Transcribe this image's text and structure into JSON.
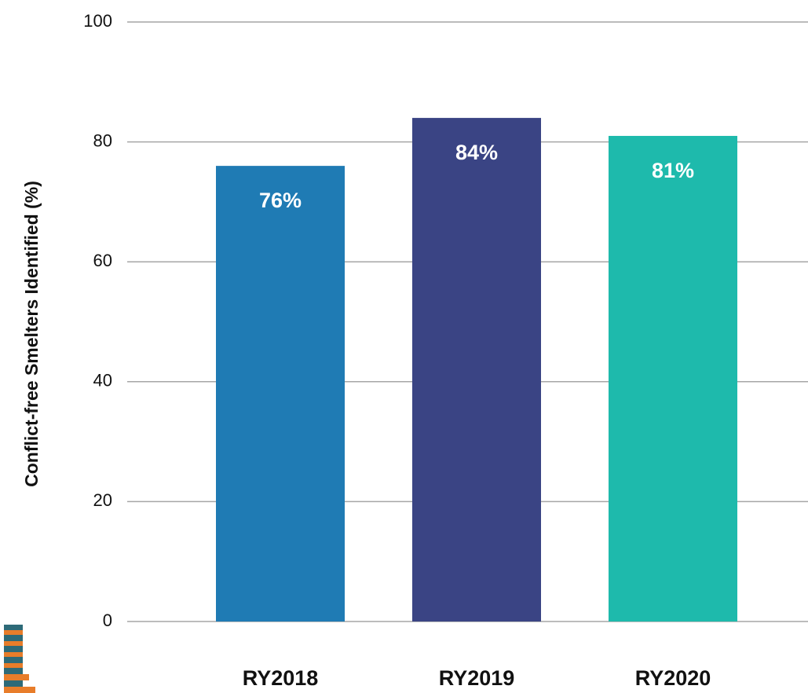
{
  "chart_data": {
    "type": "bar",
    "y_axis_label": "Conflict-free Smelters Identified (%)",
    "categories": [
      "RY2018",
      "RY2019",
      "RY2020"
    ],
    "values": [
      76,
      84,
      81
    ],
    "value_labels": [
      "76%",
      "84%",
      "81%"
    ],
    "colors": [
      "#1f7bb4",
      "#3a4484",
      "#1ebaac"
    ],
    "ylim": [
      0,
      100
    ],
    "yticks": [
      0,
      20,
      40,
      60,
      80,
      100
    ],
    "grid": true
  }
}
